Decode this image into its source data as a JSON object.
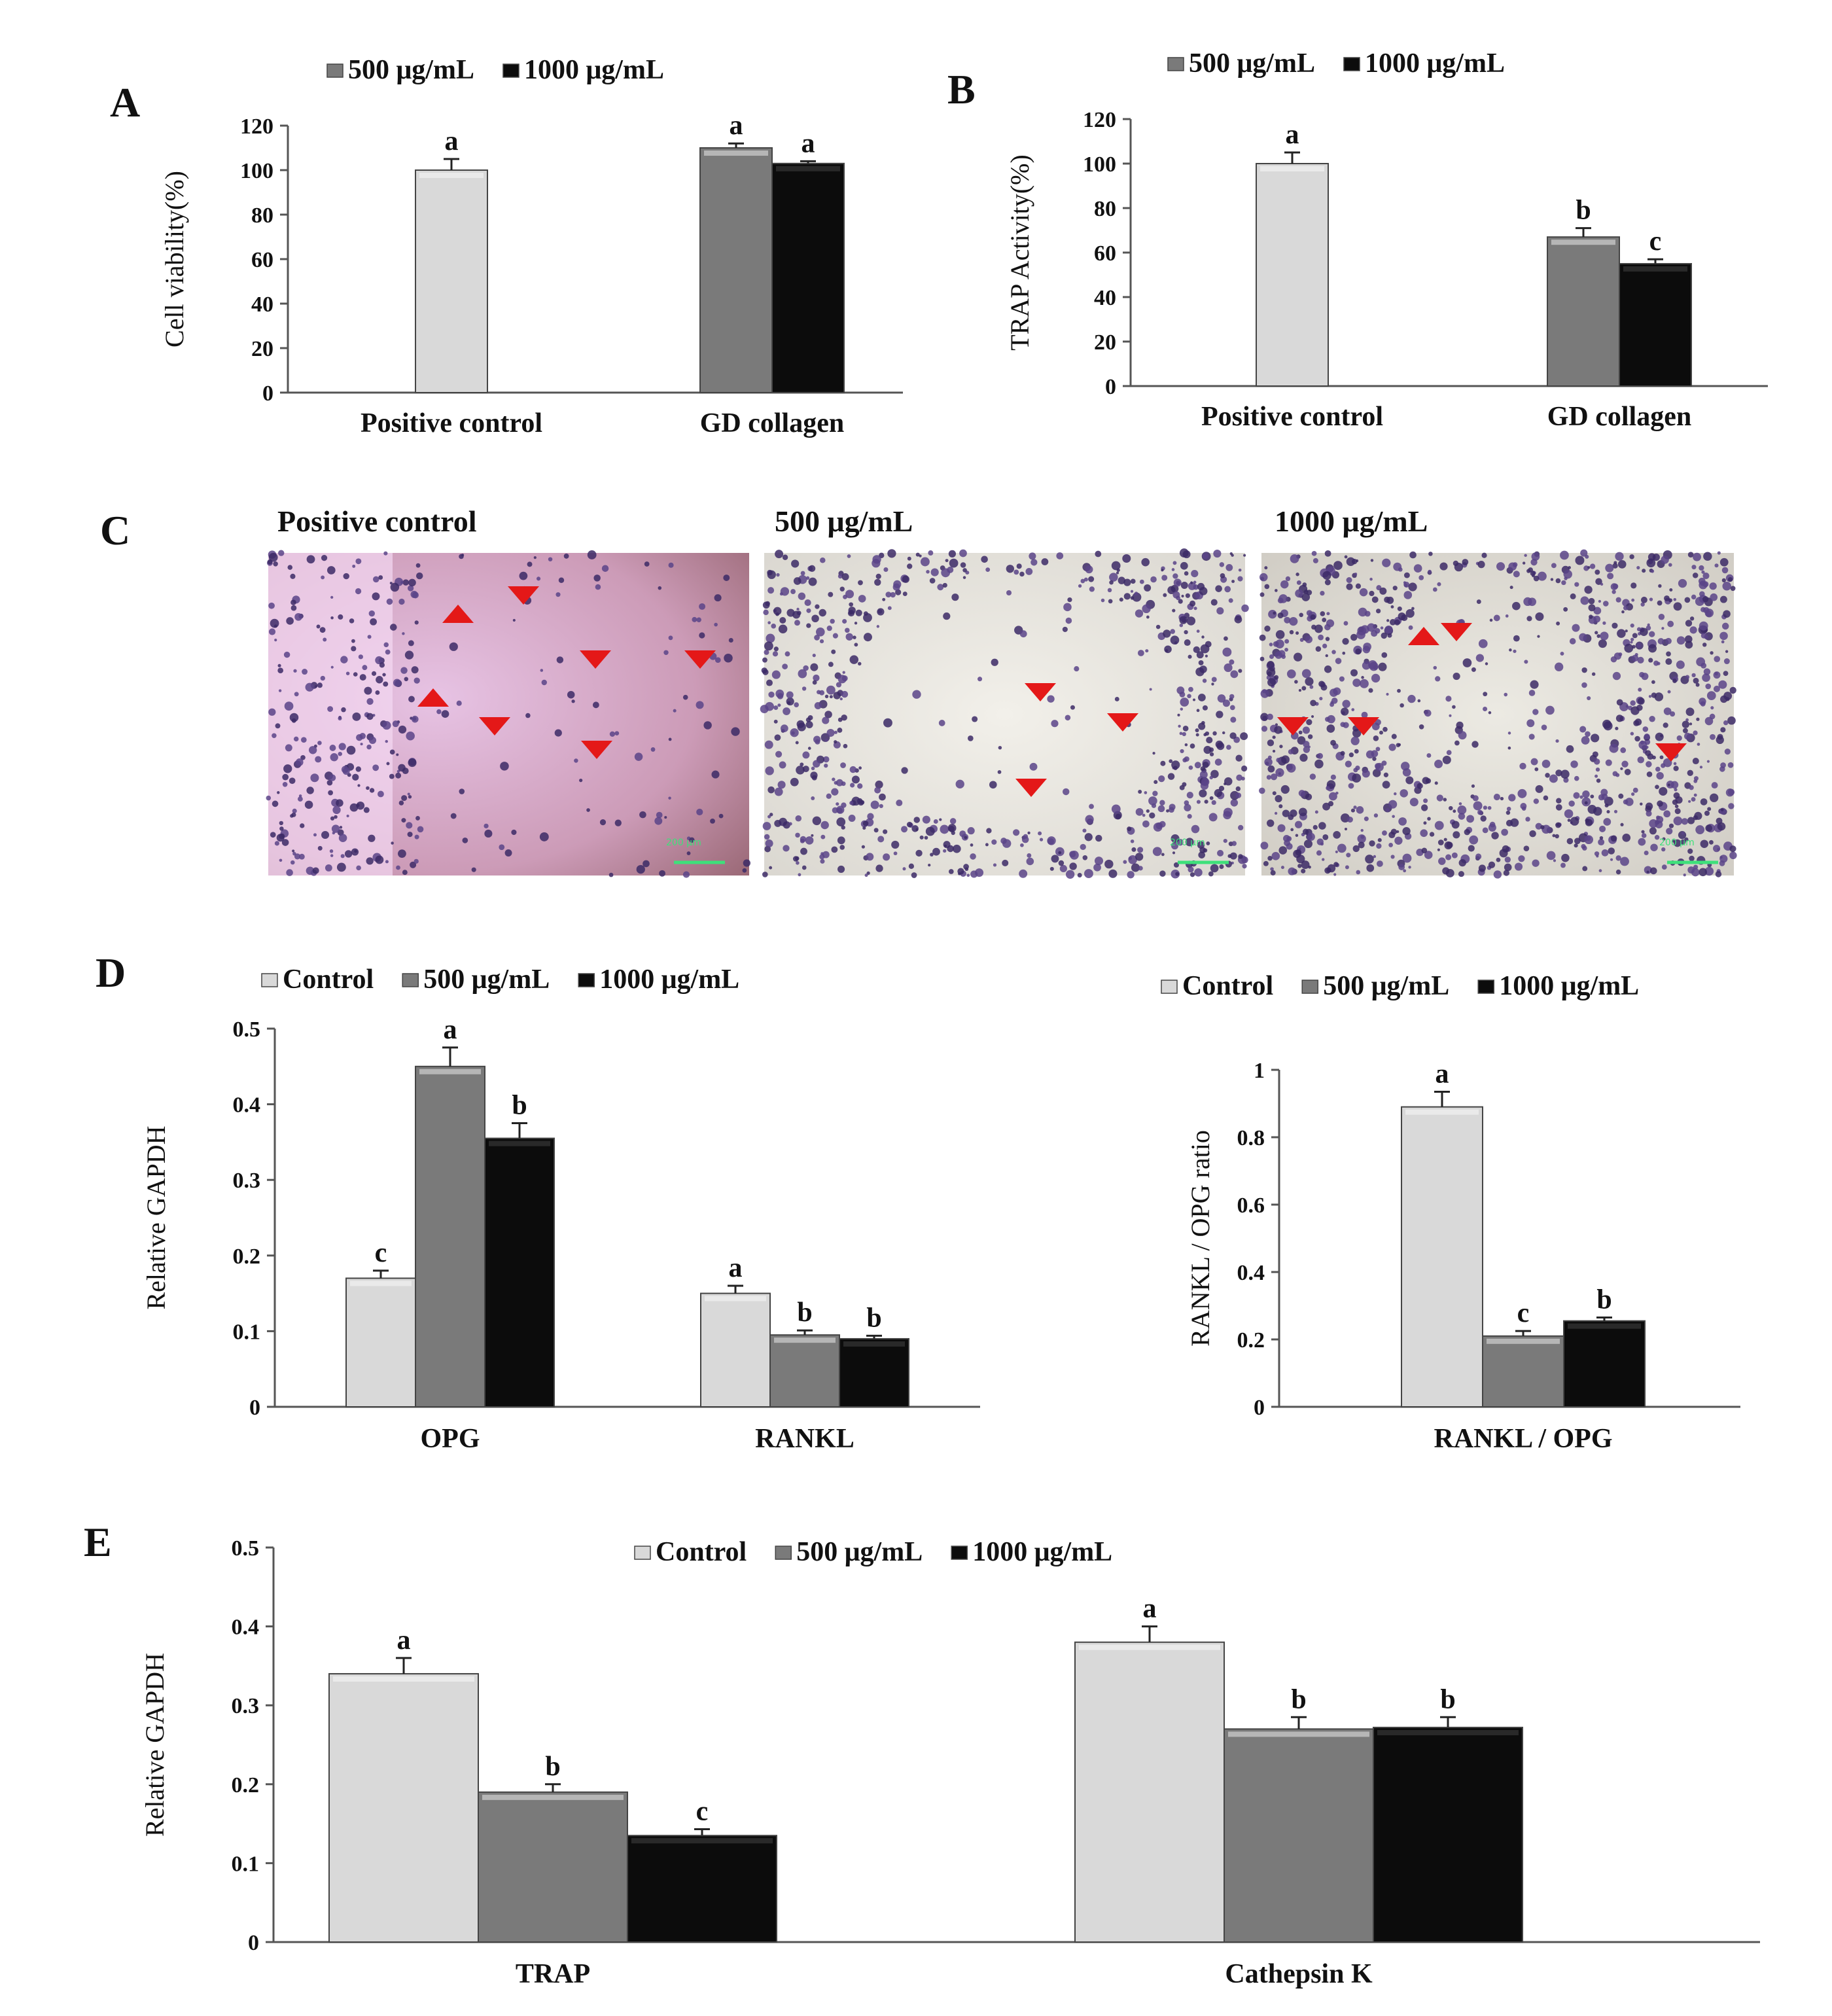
{
  "colors": {
    "control": "#d9d9d9",
    "dose500": "#7a7a7a",
    "dose1000": "#0c0c0c",
    "marker": "#e41818"
  },
  "panels": {
    "A": "A",
    "B": "B",
    "C": "C",
    "D": "D",
    "E": "E"
  },
  "micrographs": {
    "titles": [
      "Positive control",
      "500 μg/mL",
      "1000 μg/mL"
    ],
    "scale_label": "200 μm"
  },
  "chart_data": [
    {
      "id": "A",
      "type": "bar",
      "title": "",
      "ylabel": "Cell viability(%)",
      "xlabel": "",
      "ylim": [
        0,
        120
      ],
      "yticks": [
        0,
        20,
        40,
        60,
        80,
        100,
        120
      ],
      "legend": [
        "500 μg/mL",
        "1000 μg/mL"
      ],
      "legend_keys": [
        "dose500",
        "dose1000"
      ],
      "categories": [
        "Positive control",
        "GD collagen"
      ],
      "bars": [
        {
          "category": 0,
          "key": "control",
          "value": 100,
          "err": 5,
          "sig": "a"
        },
        {
          "category": 1,
          "key": "dose500",
          "value": 110,
          "err": 2,
          "sig": "a"
        },
        {
          "category": 1,
          "key": "dose1000",
          "value": 103,
          "err": 1,
          "sig": "a"
        }
      ]
    },
    {
      "id": "B",
      "type": "bar",
      "title": "",
      "ylabel": "TRAP Activity(%)",
      "xlabel": "",
      "ylim": [
        0,
        120
      ],
      "yticks": [
        0,
        20,
        40,
        60,
        80,
        100,
        120
      ],
      "legend": [
        "500 μg/mL",
        "1000 μg/mL"
      ],
      "legend_keys": [
        "dose500",
        "dose1000"
      ],
      "categories": [
        "Positive control",
        "GD collagen"
      ],
      "bars": [
        {
          "category": 0,
          "key": "control",
          "value": 100,
          "err": 5,
          "sig": "a"
        },
        {
          "category": 1,
          "key": "dose500",
          "value": 67,
          "err": 4,
          "sig": "b"
        },
        {
          "category": 1,
          "key": "dose1000",
          "value": 55,
          "err": 2,
          "sig": "c"
        }
      ]
    },
    {
      "id": "D-left",
      "type": "bar",
      "title": "",
      "ylabel": "Relative GAPDH",
      "xlabel": "",
      "ylim": [
        0,
        0.5
      ],
      "yticks": [
        "0",
        "0.1",
        "0.2",
        "0.3",
        "0.4",
        "0.5"
      ],
      "legend": [
        "Control",
        "500 μg/mL",
        "1000 μg/mL"
      ],
      "legend_keys": [
        "control",
        "dose500",
        "dose1000"
      ],
      "categories": [
        "OPG",
        "RANKL"
      ],
      "bars": [
        {
          "category": 0,
          "key": "control",
          "value": 0.17,
          "err": 0.01,
          "sig": "c"
        },
        {
          "category": 0,
          "key": "dose500",
          "value": 0.45,
          "err": 0.025,
          "sig": "a"
        },
        {
          "category": 0,
          "key": "dose1000",
          "value": 0.355,
          "err": 0.02,
          "sig": "b"
        },
        {
          "category": 1,
          "key": "control",
          "value": 0.15,
          "err": 0.01,
          "sig": "a"
        },
        {
          "category": 1,
          "key": "dose500",
          "value": 0.095,
          "err": 0.006,
          "sig": "b"
        },
        {
          "category": 1,
          "key": "dose1000",
          "value": 0.09,
          "err": 0.004,
          "sig": "b"
        }
      ]
    },
    {
      "id": "D-right",
      "type": "bar",
      "title": "",
      "ylabel": "RANKL / OPG ratio",
      "xlabel": "",
      "ylim": [
        0,
        1
      ],
      "yticks": [
        "0",
        "0.2",
        "0.4",
        "0.6",
        "0.8",
        "1"
      ],
      "legend": [
        "Control",
        "500 μg/mL",
        "1000 μg/mL"
      ],
      "legend_keys": [
        "control",
        "dose500",
        "dose1000"
      ],
      "categories": [
        "RANKL / OPG"
      ],
      "bars": [
        {
          "category": 0,
          "key": "control",
          "value": 0.89,
          "err": 0.045,
          "sig": "a"
        },
        {
          "category": 0,
          "key": "dose500",
          "value": 0.21,
          "err": 0.015,
          "sig": "c"
        },
        {
          "category": 0,
          "key": "dose1000",
          "value": 0.255,
          "err": 0.01,
          "sig": "b"
        }
      ]
    },
    {
      "id": "E",
      "type": "bar",
      "title": "",
      "ylabel": "Relative GAPDH",
      "xlabel": "",
      "ylim": [
        0,
        0.5
      ],
      "yticks": [
        "0",
        "0.1",
        "0.2",
        "0.3",
        "0.4",
        "0.5"
      ],
      "legend": [
        "Control",
        "500 μg/mL",
        "1000 μg/mL"
      ],
      "legend_keys": [
        "control",
        "dose500",
        "dose1000"
      ],
      "categories": [
        "TRAP",
        "Cathepsin K"
      ],
      "bars": [
        {
          "category": 0,
          "key": "control",
          "value": 0.34,
          "err": 0.02,
          "sig": "a"
        },
        {
          "category": 0,
          "key": "dose500",
          "value": 0.19,
          "err": 0.01,
          "sig": "b"
        },
        {
          "category": 0,
          "key": "dose1000",
          "value": 0.135,
          "err": 0.008,
          "sig": "c"
        },
        {
          "category": 1,
          "key": "control",
          "value": 0.38,
          "err": 0.02,
          "sig": "a"
        },
        {
          "category": 1,
          "key": "dose500",
          "value": 0.27,
          "err": 0.015,
          "sig": "b"
        },
        {
          "category": 1,
          "key": "dose1000",
          "value": 0.272,
          "err": 0.013,
          "sig": "b"
        }
      ]
    }
  ]
}
